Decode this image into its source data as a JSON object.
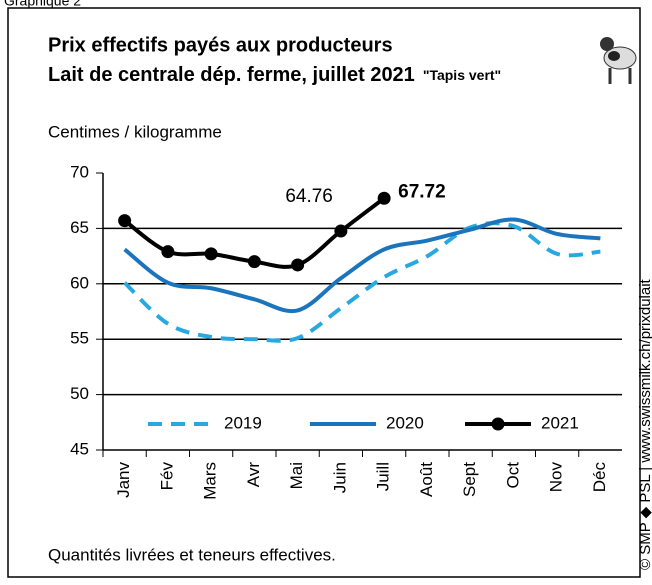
{
  "chart_data": {
    "type": "line",
    "caption": "Graphique 2",
    "title": "Prix effectifs payés aux producteurs",
    "subtitle": "Lait de centrale dép. ferme, juillet 2021",
    "subtitle_note": "\"Tapis vert\"",
    "y_label": "Centimes / kilogramme",
    "footnote": "Quantités livrées et teneurs effectives.",
    "source": "© SMP ◆ PSL | www.swissmilk.ch/prixdulait",
    "categories": [
      "Janv",
      "Fév",
      "Mars",
      "Avr",
      "Mai",
      "Juin",
      "Juill",
      "Août",
      "Sept",
      "Oct",
      "Nov",
      "Déc"
    ],
    "series": [
      {
        "name": "2019",
        "color": "#29a8e0",
        "dashed": true,
        "values": [
          60.1,
          56.4,
          55.2,
          55.0,
          55.1,
          57.8,
          60.6,
          62.5,
          65.1,
          65.2,
          62.7,
          62.9
        ]
      },
      {
        "name": "2020",
        "color": "#1b75bc",
        "values": [
          63.1,
          60.1,
          59.6,
          58.6,
          57.6,
          60.5,
          63.1,
          63.9,
          64.9,
          65.8,
          64.5,
          64.1
        ]
      },
      {
        "name": "2021",
        "color": "#000000",
        "markers": true,
        "values": [
          65.7,
          62.9,
          62.7,
          62.0,
          61.7,
          64.76,
          67.72,
          null,
          null,
          null,
          null,
          null
        ]
      }
    ],
    "ylim": [
      45,
      70
    ],
    "yticks": [
      45,
      50,
      55,
      60,
      65,
      70
    ],
    "grid": true
  }
}
